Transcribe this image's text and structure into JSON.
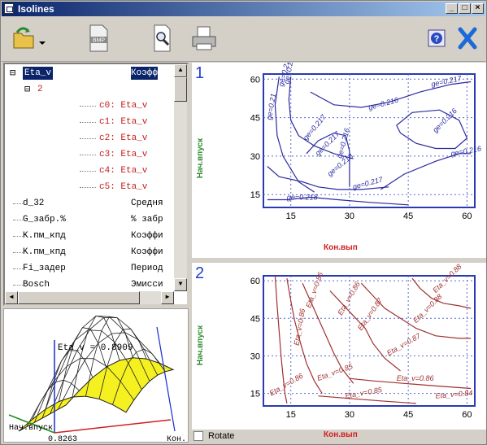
{
  "window": {
    "title": "Isolines",
    "controls": [
      "_",
      "□",
      "×"
    ]
  },
  "toolbar": {
    "icons": [
      "open-folder-icon",
      "dropdown-arrow-icon",
      "bmp-file-icon",
      "print-preview-icon",
      "printer-icon",
      "help-icon",
      "close-icon"
    ],
    "bmp_label": "BMP",
    "help_label": "?"
  },
  "tree": {
    "rows": [
      {
        "name": "Eta_v",
        "desc": "Коэфф",
        "depth": 0,
        "color": "#000",
        "selected": true
      },
      {
        "name": "2",
        "desc": "",
        "depth": 1,
        "color": "#c02020"
      },
      {
        "name": "c0: Eta_v",
        "desc": "",
        "depth": 2,
        "color": "#c02020"
      },
      {
        "name": "c1: Eta_v",
        "desc": "",
        "depth": 2,
        "color": "#c02020"
      },
      {
        "name": "c2: Eta_v",
        "desc": "",
        "depth": 2,
        "color": "#c02020"
      },
      {
        "name": "c3: Eta_v",
        "desc": "",
        "depth": 2,
        "color": "#c02020"
      },
      {
        "name": "c4: Eta_v",
        "desc": "",
        "depth": 2,
        "color": "#c02020"
      },
      {
        "name": "c5: Eta_v",
        "desc": "",
        "depth": 2,
        "color": "#c02020"
      },
      {
        "name": "d_32",
        "desc": "Средня",
        "depth": 0,
        "color": "#000"
      },
      {
        "name": "G_забр.%",
        "desc": "% забр",
        "depth": 0,
        "color": "#000"
      },
      {
        "name": "K.пм_кпд",
        "desc": "Коэффи",
        "depth": 0,
        "color": "#000"
      },
      {
        "name": "K.пм_кпд",
        "desc": "Коэффи",
        "depth": 0,
        "color": "#000"
      },
      {
        "name": "Fi_задер",
        "desc": "Период",
        "depth": 0,
        "color": "#000"
      },
      {
        "name": "Bosch",
        "desc": "Эмисси",
        "depth": 0,
        "color": "#000"
      }
    ]
  },
  "surface3d": {
    "label": "Eta_v = 0.8909",
    "corner_label": "Нач.впуск",
    "corner_value": "0.8263",
    "axis_label": "Кон."
  },
  "rotate": {
    "label": "Rotate",
    "checked": false
  },
  "charts": [
    {
      "number": "1",
      "ylabel": "Нач.впуск",
      "xlabel": "Кон.вып",
      "xticks": [
        "15",
        "30",
        "45",
        "60"
      ],
      "yticks": [
        "15",
        "30",
        "45",
        "60"
      ],
      "labels": [
        "ge=0.217",
        "ge=0.218",
        "ge=0.21",
        "ge=0.216",
        "ge=0.216",
        "ge=0.217",
        "ge=0.217",
        "ge=0.216",
        "ge=0.218",
        "ge=0.217",
        "ge=0.216",
        "ge=0.218",
        "ge=0.21"
      ]
    },
    {
      "number": "2",
      "ylabel": "Нач.впуск",
      "xlabel": "Кон.вып",
      "xticks": [
        "15",
        "30",
        "45",
        "60"
      ],
      "yticks": [
        "15",
        "30",
        "45",
        "60"
      ],
      "labels": [
        "Eta_v=0.88",
        "Eta_v=0.86",
        "Eta_v=0.86",
        "Eta_v=0.87",
        "Eta_v=0.86",
        "Eta_v=0.85",
        "Eta_v=0.85",
        "Eta_v=0.84",
        "Eta_v=0.88",
        "Eta_v=0.87",
        "Eta_v=0.86",
        "Eta_v=0.86"
      ]
    }
  ],
  "chart_data": [
    {
      "type": "contour",
      "title": "",
      "xlabel": "Кон.вып",
      "ylabel": "Нач.впуск",
      "xlim": [
        8,
        62
      ],
      "ylim": [
        10,
        62
      ],
      "grid": true,
      "x_ticks": [
        15,
        30,
        45,
        60
      ],
      "y_ticks": [
        15,
        30,
        45,
        60
      ],
      "contour_levels": [
        0.21,
        0.216,
        0.217,
        0.218
      ],
      "line_color": "#2a2aa0"
    },
    {
      "type": "contour",
      "title": "",
      "xlabel": "Кон.вып",
      "ylabel": "Нач.впуск",
      "xlim": [
        8,
        62
      ],
      "ylim": [
        10,
        62
      ],
      "grid": true,
      "x_ticks": [
        15,
        30,
        45,
        60
      ],
      "y_ticks": [
        15,
        30,
        45,
        60
      ],
      "contour_levels": [
        0.84,
        0.85,
        0.86,
        0.87,
        0.88
      ],
      "line_color": "#a03030"
    }
  ]
}
